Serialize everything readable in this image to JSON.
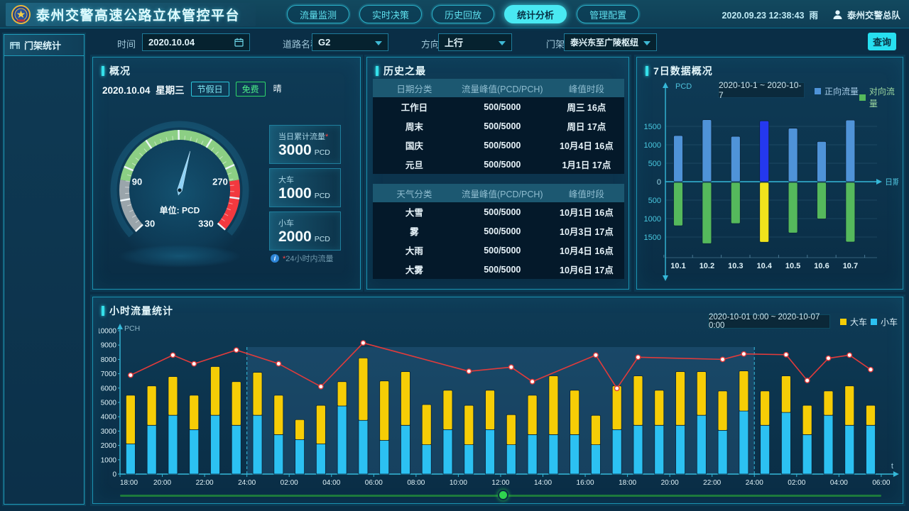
{
  "header": {
    "title": "泰州交警高速公路立体管控平台",
    "nav": [
      {
        "label": "流量监测",
        "active": false
      },
      {
        "label": "实时决策",
        "active": false
      },
      {
        "label": "历史回放",
        "active": false
      },
      {
        "label": "统计分析",
        "active": true
      },
      {
        "label": "管理配置",
        "active": false
      }
    ],
    "datetime": "2020.09.23 12:38:43",
    "weather": "雨",
    "user": "泰州交警总队"
  },
  "sidebar": {
    "items": [
      {
        "label": "门架统计",
        "active": true
      }
    ]
  },
  "filters": {
    "time_label": "时间",
    "time_value": "2020.10.04",
    "road_label": "道路名称",
    "road_value": "G2",
    "direction_label": "方向",
    "direction_value": "上行",
    "gantry_label": "门架",
    "gantry_value": "泰兴东至广陵枢纽",
    "search_label": "查询"
  },
  "overview": {
    "title": "概况",
    "date": "2020.10.04",
    "weekday": "星期三",
    "badges": [
      {
        "label": "节假日",
        "style": "cyan"
      },
      {
        "label": "免费",
        "style": "green"
      },
      {
        "label": "晴",
        "style": "plain"
      }
    ],
    "gauge": {
      "unit_label": "单位: PCD",
      "ticks": [
        "90",
        "270",
        "30",
        "330"
      ]
    },
    "cards": [
      {
        "label": "当日累计流量",
        "asterisk": "*",
        "value": "3000",
        "unit": "PCD"
      },
      {
        "label": "大车",
        "asterisk": "",
        "value": "1000",
        "unit": "PCD"
      },
      {
        "label": "小车",
        "asterisk": "",
        "value": "2000",
        "unit": "PCD"
      }
    ],
    "note": "24小时内流量"
  },
  "history": {
    "title": "历史之最",
    "tables": [
      {
        "headers": [
          "日期分类",
          "流量峰值(PCD/PCH)",
          "峰值时段"
        ],
        "rows": [
          [
            "工作日",
            "500/5000",
            "周三 16点"
          ],
          [
            "周末",
            "500/5000",
            "周日 17点"
          ],
          [
            "国庆",
            "500/5000",
            "10月4日 16点"
          ],
          [
            "元旦",
            "500/5000",
            "1月1日 17点"
          ]
        ]
      },
      {
        "headers": [
          "天气分类",
          "流量峰值(PCD/PCH)",
          "峰值时段"
        ],
        "rows": [
          [
            "大雪",
            "500/5000",
            "10月1日 16点"
          ],
          [
            "雾",
            "500/5000",
            "10月3日 17点"
          ],
          [
            "大雨",
            "500/5000",
            "10月4日 16点"
          ],
          [
            "大雾",
            "500/5000",
            "10月6日 17点"
          ]
        ]
      }
    ]
  },
  "week_panel": {
    "title": "7日数据概况",
    "date_range": "2020-10-1 ~ 2020-10-7"
  },
  "hour_panel": {
    "title": "小时流量统计",
    "date_range": "2020-10-01 0:00 ~ 2020-10-07 0:00"
  },
  "chart_data": [
    {
      "id": "week",
      "type": "bar",
      "title": "7日数据概况",
      "categories": [
        "10.1",
        "10.2",
        "10.3",
        "10.4",
        "10.5",
        "10.6",
        "10.7"
      ],
      "series": [
        {
          "name": "正向流量",
          "direction": "up",
          "color": "#4f93d8",
          "highlight_color": "#2438ef",
          "values": [
            1250,
            1680,
            1230,
            1650,
            1450,
            1090,
            1670
          ]
        },
        {
          "name": "对向流量",
          "direction": "down",
          "color": "#55b95c",
          "highlight_color": "#f0e31c",
          "values": [
            1175,
            1660,
            1115,
            1620,
            1370,
            990,
            1615
          ]
        }
      ],
      "highlight_index": 3,
      "xlabel": "日期",
      "ylabel": "PCD",
      "yticks": [
        500,
        1000,
        1500
      ],
      "ylim": [
        -1800,
        1800
      ],
      "legend_position": "top-right",
      "grid": true
    },
    {
      "id": "hourly",
      "type": "stacked-bar+line",
      "title": "小时流量统计",
      "x_tick_labels": [
        "18:00",
        "20:00",
        "22:00",
        "24:00",
        "02:00",
        "04:00",
        "06:00",
        "08:00",
        "10:00",
        "12:00",
        "14:00",
        "16:00",
        "18:00",
        "20:00",
        "22:00",
        "24:00",
        "02:00",
        "04:00",
        "06:00"
      ],
      "series": [
        {
          "name": "小车",
          "color": "#2cc1f2",
          "values": [
            2100,
            3400,
            4100,
            3100,
            4100,
            3400,
            4100,
            2750,
            2400,
            2100,
            4750,
            3750,
            2350,
            3400,
            2050,
            3100,
            2050,
            3100,
            2050,
            2750,
            2750,
            2750,
            2050,
            3100,
            3400,
            3400,
            3400,
            4100,
            3050,
            4400,
            3400,
            4300,
            2750,
            4100,
            3400,
            3400
          ]
        },
        {
          "name": "大车",
          "color": "#f6cd06",
          "values": [
            3400,
            2750,
            2700,
            2400,
            3400,
            3050,
            3000,
            2750,
            1400,
            2700,
            1700,
            4350,
            4150,
            3750,
            2800,
            2750,
            2750,
            2750,
            2100,
            2750,
            4100,
            3100,
            2050,
            3050,
            3450,
            2450,
            3750,
            3050,
            2750,
            2800,
            2400,
            2550,
            2050,
            1700,
            2750,
            1400
          ]
        }
      ],
      "line": {
        "color": "#e23b3b",
        "points": [
          [
            0,
            6900
          ],
          [
            2,
            8300
          ],
          [
            3,
            7690
          ],
          [
            5,
            8650
          ],
          [
            7,
            7700
          ],
          [
            9,
            6100
          ],
          [
            11,
            9150
          ],
          [
            16,
            7170
          ],
          [
            18,
            7460
          ],
          [
            19,
            6450
          ],
          [
            22,
            8300
          ],
          [
            23,
            5980
          ],
          [
            24,
            8150
          ],
          [
            28,
            8000
          ],
          [
            29,
            8380
          ],
          [
            31,
            8330
          ],
          [
            32,
            6530
          ],
          [
            33,
            8080
          ],
          [
            34,
            8300
          ],
          [
            35,
            7290
          ]
        ]
      },
      "highlight_tick_range": [
        3,
        15
      ],
      "xlabel": "t",
      "ylabel": "PCH",
      "yticks": [
        0,
        1000,
        2000,
        3000,
        4000,
        5000,
        6000,
        7000,
        8000,
        9000,
        10000
      ],
      "ylim": [
        0,
        10000
      ],
      "grid": false,
      "legend_position": "top-right"
    }
  ],
  "colors": {
    "accent_cyan": "#35e0ea",
    "nav_active": "#49e9f2",
    "bar_small_car": "#2cc1f2",
    "bar_big_car": "#f6cd06",
    "line_red": "#e23b3b",
    "forward_blue": "#4f93d8",
    "reverse_green": "#55b95c",
    "highlight_blue": "#2438ef",
    "highlight_yellow": "#f0e31c",
    "gauge_green": "#8ccf84",
    "gauge_gray": "#9aa5ab",
    "gauge_red": "#f2393f",
    "slider_green": "#2fd34f"
  }
}
